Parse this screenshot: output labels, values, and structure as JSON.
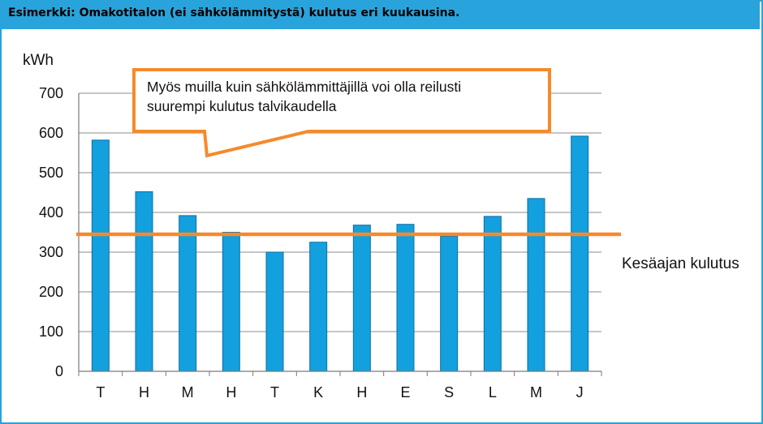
{
  "header": {
    "title": "Esimerkki: Omakotitalon (ei sähkölämmitystä) kulutus eri kuukausina.",
    "background": "#29a3db"
  },
  "chart_data": {
    "type": "bar",
    "ylabel": "kWh",
    "ylim": [
      0,
      700
    ],
    "yticks": [
      0,
      100,
      200,
      300,
      400,
      500,
      600,
      700
    ],
    "grid": true,
    "categories": [
      "T",
      "H",
      "M",
      "H",
      "T",
      "K",
      "H",
      "E",
      "S",
      "L",
      "M",
      "J"
    ],
    "values": [
      582,
      452,
      392,
      350,
      300,
      325,
      368,
      370,
      340,
      390,
      435,
      592
    ],
    "bar_color": "#13a0de",
    "reference_line": {
      "value": 345,
      "label": "Kesäajan kulutus",
      "color": "#f58a2c"
    },
    "annotation": {
      "lines": [
        "Myös muilla kuin sähkölämmittäjillä voi olla reilusti",
        "suurempi kulutus talvikaudella"
      ],
      "border_color": "#f58a2c"
    }
  }
}
